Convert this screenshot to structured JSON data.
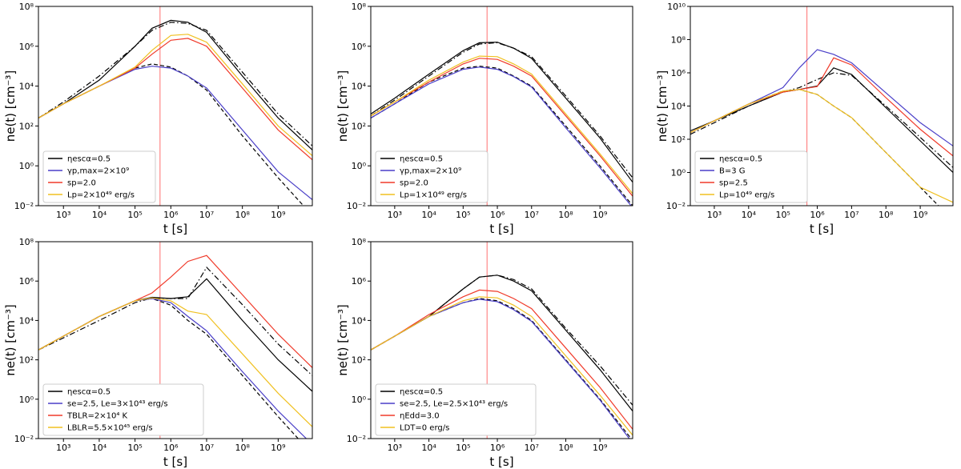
{
  "chart_data": [
    {
      "type": "line",
      "xlabel": "t [s]",
      "ylabel": "ne(t) [cm⁻³]",
      "log_x": true,
      "log_y": true,
      "legend": "lower left",
      "vline": 500000,
      "vline_color": "#ff7070",
      "xlim": [
        200,
        9000000000.0
      ],
      "ylim": [
        0.01,
        100000000.0
      ],
      "xticks": [
        {
          "value": 1000.0,
          "label": "10³"
        },
        {
          "value": 10000.0,
          "label": "10⁴"
        },
        {
          "value": 100000.0,
          "label": "10⁵"
        },
        {
          "value": 1000000.0,
          "label": "10⁶"
        },
        {
          "value": 10000000.0,
          "label": "10⁷"
        },
        {
          "value": 100000000.0,
          "label": "10⁸"
        },
        {
          "value": 1000000000.0,
          "label": "10⁹"
        }
      ],
      "yticks": [
        {
          "value": 0.01,
          "label": "10⁻²"
        },
        {
          "value": 1,
          "label": "10⁰"
        },
        {
          "value": 100,
          "label": "10²"
        },
        {
          "value": 10000.0,
          "label": "10⁴"
        },
        {
          "value": 1000000.0,
          "label": "10⁶"
        },
        {
          "value": 100000000.0,
          "label": "10⁸"
        }
      ],
      "x": [
        200,
        1000.0,
        10000.0,
        100000.0,
        300000.0,
        1000000.0,
        3000000.0,
        10000000.0,
        100000000.0,
        1000000000.0,
        9000000000.0
      ],
      "series": [
        {
          "name": "ηescα=0.5",
          "color": "#000000",
          "values": [
            250.0,
            1300.0,
            20000.0,
            1000000.0,
            8000000.0,
            20000000.0,
            16000000.0,
            5000000.0,
            32000.0,
            250.0,
            6.3
          ]
        },
        {
          "color": "#000000",
          "dash": "dashdot",
          "values": [
            250.0,
            1600.0,
            32000.0,
            1000000.0,
            6300000.0,
            16000000.0,
            14000000.0,
            6300000.0,
            50000.0,
            400.0,
            10
          ]
        },
        {
          "color": "#000000",
          "dash": "dashed",
          "values": [
            250.0,
            1300.0,
            10000.0,
            80000.0,
            130000.0,
            90000.0,
            32000.0,
            6300.0,
            32,
            0.25,
            0.0032
          ]
        },
        {
          "name": "γp,max=2×10⁹",
          "color": "#4a3fc8",
          "values": [
            250.0,
            1300.0,
            10000.0,
            70000.0,
            100000.0,
            80000.0,
            32000.0,
            8000.0,
            63,
            0.5,
            0.02
          ]
        },
        {
          "name": "sp=2.0",
          "color": "#f03a2a",
          "values": [
            250.0,
            1300.0,
            10000.0,
            80000.0,
            400000.0,
            2000000.0,
            2500000.0,
            1000000.0,
            8000.0,
            63,
            2
          ]
        },
        {
          "name": "Lp=2×10⁴⁹ erg/s",
          "color": "#f0c020",
          "values": [
            250.0,
            1300.0,
            10000.0,
            90000.0,
            630000.0,
            3500000.0,
            4000000.0,
            1600000.0,
            13000.0,
            100,
            3.2
          ]
        }
      ]
    },
    {
      "type": "line",
      "xlabel": "t [s]",
      "ylabel": "ne(t) [cm⁻³]",
      "log_x": true,
      "log_y": true,
      "legend": "lower left",
      "vline": 500000,
      "vline_color": "#ff7070",
      "xlim": [
        200,
        9000000000.0
      ],
      "ylim": [
        0.01,
        100000000.0
      ],
      "xticks": [
        {
          "value": 1000.0,
          "label": "10³"
        },
        {
          "value": 10000.0,
          "label": "10⁴"
        },
        {
          "value": 100000.0,
          "label": "10⁵"
        },
        {
          "value": 1000000.0,
          "label": "10⁶"
        },
        {
          "value": 10000000.0,
          "label": "10⁷"
        },
        {
          "value": 100000000.0,
          "label": "10⁸"
        },
        {
          "value": 1000000000.0,
          "label": "10⁹"
        }
      ],
      "yticks": [
        {
          "value": 0.01,
          "label": "10⁻²"
        },
        {
          "value": 1,
          "label": "10⁰"
        },
        {
          "value": 100,
          "label": "10²"
        },
        {
          "value": 10000.0,
          "label": "10⁴"
        },
        {
          "value": 1000000.0,
          "label": "10⁶"
        },
        {
          "value": 100000000.0,
          "label": "10⁸"
        }
      ],
      "x": [
        200,
        1000.0,
        10000.0,
        100000.0,
        300000.0,
        1000000.0,
        3000000.0,
        10000000.0,
        100000000.0,
        1000000000.0,
        9000000000.0
      ],
      "series": [
        {
          "name": "ηescα=0.5",
          "color": "#000000",
          "values": [
            400.0,
            2500.0,
            40000.0,
            600000.0,
            1500000.0,
            1600000.0,
            800000.0,
            250000.0,
            2500.0,
            25,
            0.15
          ]
        },
        {
          "color": "#000000",
          "dash": "dashdot",
          "values": [
            320.0,
            2000.0,
            32000.0,
            500000.0,
            1300000.0,
            1500000.0,
            800000.0,
            300000.0,
            3200.0,
            32,
            0.25
          ]
        },
        {
          "color": "#000000",
          "dash": "dashed",
          "values": [
            250.0,
            1300.0,
            16000.0,
            80000.0,
            100000.0,
            80000.0,
            32000.0,
            10000.0,
            100,
            1,
            0.01
          ]
        },
        {
          "name": "γp,max=2×10⁹",
          "color": "#4a3fc8",
          "values": [
            250.0,
            1300.0,
            13000.0,
            70000.0,
            90000.0,
            70000.0,
            30000.0,
            9000.0,
            80,
            0.8,
            0.008
          ]
        },
        {
          "name": "sp=2.0",
          "color": "#f03a2a",
          "values": [
            320.0,
            1600.0,
            16000.0,
            130000.0,
            250000.0,
            220000.0,
            100000.0,
            32000.0,
            320.0,
            3.2,
            0.03
          ]
        },
        {
          "name": "Lp=1×10⁴⁹ erg/s",
          "color": "#f0c020",
          "values": [
            320.0,
            1600.0,
            20000.0,
            160000.0,
            320000.0,
            300000.0,
            130000.0,
            40000.0,
            400.0,
            4,
            0.04
          ]
        }
      ]
    },
    {
      "type": "line",
      "xlabel": "t [s]",
      "ylabel": "ne(t) [cm⁻³]",
      "log_x": true,
      "log_y": true,
      "legend": "lower left",
      "vline": 500000,
      "vline_color": "#ff7070",
      "xlim": [
        200,
        9000000000.0
      ],
      "ylim": [
        0.01,
        10000000000.0
      ],
      "xticks": [
        {
          "value": 1000.0,
          "label": "10³"
        },
        {
          "value": 10000.0,
          "label": "10⁴"
        },
        {
          "value": 100000.0,
          "label": "10⁵"
        },
        {
          "value": 1000000.0,
          "label": "10⁶"
        },
        {
          "value": 10000000.0,
          "label": "10⁷"
        },
        {
          "value": 100000000.0,
          "label": "10⁸"
        },
        {
          "value": 1000000000.0,
          "label": "10⁹"
        }
      ],
      "yticks": [
        {
          "value": 0.01,
          "label": "10⁻²"
        },
        {
          "value": 1,
          "label": "10⁰"
        },
        {
          "value": 100,
          "label": "10²"
        },
        {
          "value": 10000.0,
          "label": "10⁴"
        },
        {
          "value": 1000000.0,
          "label": "10⁶"
        },
        {
          "value": 100000000.0,
          "label": "10⁸"
        },
        {
          "value": 10000000000.0,
          "label": "10¹⁰"
        }
      ],
      "x": [
        200,
        1000.0,
        10000.0,
        100000.0,
        300000.0,
        1000000.0,
        3000000.0,
        10000000.0,
        100000000.0,
        1000000000.0,
        9000000000.0
      ],
      "series": [
        {
          "name": "ηescα=0.5",
          "color": "#000000",
          "values": [
            320.0,
            1300.0,
            10000.0,
            70000.0,
            100000.0,
            160000.0,
            2000000.0,
            800000.0,
            8000.0,
            80,
            1
          ]
        },
        {
          "color": "#000000",
          "dash": "dashdot",
          "values": [
            200.0,
            1000.0,
            10000.0,
            70000.0,
            130000.0,
            400000.0,
            1000000.0,
            700000.0,
            10000.0,
            130.0,
            2
          ]
        },
        {
          "color": "#000000",
          "dash": "dashed",
          "values": [
            250.0,
            1300.0,
            13000.0,
            80000.0,
            100000.0,
            50000.0,
            10000.0,
            2000.0,
            16,
            0.13,
            0.0013
          ]
        },
        {
          "name": "B=3 G",
          "color": "#4a3fc8",
          "values": [
            250.0,
            1300.0,
            13000.0,
            130000.0,
            2000000.0,
            25000000.0,
            13000000.0,
            4000000.0,
            63000.0,
            1000.0,
            40
          ]
        },
        {
          "name": "sp=2.5",
          "color": "#f03a2a",
          "values": [
            250.0,
            1300.0,
            13000.0,
            70000.0,
            100000.0,
            150000.0,
            8000000.0,
            3000000.0,
            32000.0,
            400.0,
            10
          ]
        },
        {
          "name": "Lp=10⁴⁹ erg/s",
          "color": "#f0c020",
          "values": [
            250.0,
            1300.0,
            13000.0,
            80000.0,
            100000.0,
            50000.0,
            10000.0,
            2000.0,
            16,
            0.13,
            0.016
          ]
        }
      ]
    },
    {
      "type": "line",
      "xlabel": "t [s]",
      "ylabel": "ne(t) [cm⁻³]",
      "log_x": true,
      "log_y": true,
      "legend": "lower left",
      "vline": 500000,
      "vline_color": "#ff7070",
      "xlim": [
        200,
        9000000000.0
      ],
      "ylim": [
        0.01,
        100000000.0
      ],
      "xticks": [
        {
          "value": 1000.0,
          "label": "10³"
        },
        {
          "value": 10000.0,
          "label": "10⁴"
        },
        {
          "value": 100000.0,
          "label": "10⁵"
        },
        {
          "value": 1000000.0,
          "label": "10⁶"
        },
        {
          "value": 10000000.0,
          "label": "10⁷"
        },
        {
          "value": 100000000.0,
          "label": "10⁸"
        },
        {
          "value": 1000000000.0,
          "label": "10⁹"
        }
      ],
      "yticks": [
        {
          "value": 0.01,
          "label": "10⁻²"
        },
        {
          "value": 1,
          "label": "10⁰"
        },
        {
          "value": 100,
          "label": "10²"
        },
        {
          "value": 10000.0,
          "label": "10⁴"
        },
        {
          "value": 1000000.0,
          "label": "10⁶"
        },
        {
          "value": 100000000.0,
          "label": "10⁸"
        }
      ],
      "x": [
        200,
        1000.0,
        10000.0,
        100000.0,
        300000.0,
        1000000.0,
        3000000.0,
        10000000.0,
        100000000.0,
        1000000000.0,
        9000000000.0
      ],
      "series": [
        {
          "name": "ηescα=0.5",
          "color": "#000000",
          "values": [
            320.0,
            1600.0,
            16000.0,
            100000.0,
            150000.0,
            130000.0,
            160000.0,
            1300000.0,
            10000.0,
            100,
            2.5
          ]
        },
        {
          "color": "#000000",
          "dash": "dashdot",
          "values": [
            320.0,
            1300.0,
            10000.0,
            80000.0,
            140000.0,
            130000.0,
            130000.0,
            5000000.0,
            63000.0,
            630.0,
            16
          ]
        },
        {
          "color": "#000000",
          "dash": "dashed",
          "values": [
            320.0,
            1600.0,
            16000.0,
            100000.0,
            130000.0,
            60000.0,
            10000.0,
            2000.0,
            16,
            0.13,
            0.0016
          ]
        },
        {
          "name": "se=2.5, Le=3×10⁴³ erg/s",
          "color": "#4a3fc8",
          "values": [
            320.0,
            1600.0,
            16000.0,
            100000.0,
            130000.0,
            80000.0,
            16000.0,
            3000.0,
            25,
            0.25,
            0.005
          ]
        },
        {
          "name": "TBLR=2×10⁴ K",
          "color": "#f03a2a",
          "values": [
            320.0,
            1600.0,
            16000.0,
            100000.0,
            250000.0,
            1600000.0,
            10000000.0,
            20000000.0,
            200000.0,
            2000.0,
            40
          ]
        },
        {
          "name": "LBLR=5.5×10⁴⁵ erg/s",
          "color": "#f0c020",
          "values": [
            320.0,
            1600.0,
            16000.0,
            100000.0,
            140000.0,
            100000.0,
            30000.0,
            20000.0,
            200.0,
            2,
            0.04
          ]
        }
      ]
    },
    {
      "type": "line",
      "xlabel": "t [s]",
      "ylabel": "ne(t) [cm⁻³]",
      "log_x": true,
      "log_y": true,
      "legend": "lower left",
      "vline": 500000,
      "vline_color": "#ff7070",
      "xlim": [
        200,
        9000000000.0
      ],
      "ylim": [
        0.01,
        100000000.0
      ],
      "xticks": [
        {
          "value": 1000.0,
          "label": "10³"
        },
        {
          "value": 10000.0,
          "label": "10⁴"
        },
        {
          "value": 100000.0,
          "label": "10⁵"
        },
        {
          "value": 1000000.0,
          "label": "10⁶"
        },
        {
          "value": 10000000.0,
          "label": "10⁷"
        },
        {
          "value": 100000000.0,
          "label": "10⁸"
        },
        {
          "value": 1000000000.0,
          "label": "10⁹"
        }
      ],
      "yticks": [
        {
          "value": 0.01,
          "label": "10⁻²"
        },
        {
          "value": 1,
          "label": "10⁰"
        },
        {
          "value": 100,
          "label": "10²"
        },
        {
          "value": 10000.0,
          "label": "10⁴"
        },
        {
          "value": 1000000.0,
          "label": "10⁶"
        },
        {
          "value": 100000000.0,
          "label": "10⁸"
        }
      ],
      "x": [
        200,
        1000.0,
        10000.0,
        100000.0,
        300000.0,
        1000000.0,
        3000000.0,
        10000000.0,
        100000000.0,
        1000000000.0,
        9000000000.0
      ],
      "series": [
        {
          "name": "ηescα=0.5",
          "color": "#000000",
          "values": [
            320.0,
            1600.0,
            16000.0,
            400000.0,
            1600000.0,
            2000000.0,
            1000000.0,
            320000.0,
            3200.0,
            32,
            0.25
          ]
        },
        {
          "color": "#000000",
          "dash": "dashdot",
          "values": [
            320.0,
            1600.0,
            16000.0,
            400000.0,
            1600000.0,
            2000000.0,
            1200000.0,
            400000.0,
            4000.0,
            50,
            0.5
          ]
        },
        {
          "color": "#000000",
          "dash": "dashed",
          "values": [
            320.0,
            1600.0,
            16000.0,
            80000.0,
            130000.0,
            100000.0,
            40000.0,
            10000.0,
            100,
            1,
            0.008
          ]
        },
        {
          "name": "se=2.5, Le=2.5×10⁴³ erg/s",
          "color": "#4a3fc8",
          "values": [
            320.0,
            1600.0,
            16000.0,
            80000.0,
            120000.0,
            90000.0,
            35000.0,
            9000.0,
            90,
            0.9,
            0.006
          ]
        },
        {
          "name": "ηEdd=3.0",
          "color": "#f03a2a",
          "values": [
            320.0,
            1600.0,
            20000.0,
            160000.0,
            350000.0,
            300000.0,
            130000.0,
            40000.0,
            400.0,
            4,
            0.03
          ]
        },
        {
          "name": "LDT=0 erg/s",
          "color": "#f0c020",
          "values": [
            320.0,
            1600.0,
            16000.0,
            100000.0,
            160000.0,
            140000.0,
            60000.0,
            16000.0,
            160.0,
            1.6,
            0.015
          ]
        }
      ]
    }
  ]
}
